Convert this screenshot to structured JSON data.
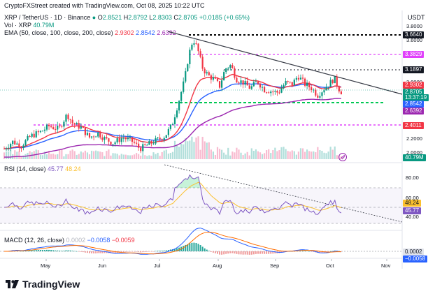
{
  "header": {
    "credit": "CryptoFXStreet created with TradingView.com, Oct 08, 2025 10:22 UTC",
    "symbol": "XRP / TetherUS · 1D · Binance",
    "o_label": "O",
    "o": "2.8521",
    "h_label": "H",
    "h": "2.8792",
    "l_label": "L",
    "l": "2.8303",
    "c_label": "C",
    "c": "2.8705",
    "change": "+0.0185 (+0.65%)",
    "vol_label": "Vol · XRP",
    "vol": "40.79M",
    "ema_label": "EMA (50, close, 100, close, 200, close)",
    "ema50": "2.9302",
    "ema100": "2.8542",
    "ema200": "2.6392",
    "currency": "USDT"
  },
  "colors": {
    "up": "#089981",
    "down": "#f23645",
    "ema50": "#f23645",
    "ema100": "#2962ff",
    "ema200": "#9c27b0",
    "rsi": "#7e57c2",
    "rsi_ma": "#fbc02d",
    "green_level": "#00c853",
    "magenta_level": "#e040fb",
    "trend": "#363a45"
  },
  "price_axis": {
    "ticks": [
      "3.8000",
      "3.6000",
      "3.4000",
      "3.2000",
      "3.0000",
      "2.8000",
      "2.6000",
      "2.4000",
      "2.2000",
      "2.0000"
    ],
    "tags": [
      {
        "value": "3.6640",
        "bg": "#131722"
      },
      {
        "value": "3.3829",
        "bg": "#e040fb"
      },
      {
        "value": "3.1897",
        "bg": "#131722"
      },
      {
        "value": "2.9302",
        "bg": "#f23645"
      },
      {
        "value": "2.8705",
        "bg": "#089981"
      },
      {
        "value": "13:37:19",
        "bg": "#089981"
      },
      {
        "value": "2.8542",
        "bg": "#2962ff"
      },
      {
        "value": "2.6392",
        "bg": "#9c27b0"
      },
      {
        "value": "2.4011",
        "bg": "#f23645"
      },
      {
        "value": "40.79M",
        "bg": "#089981"
      }
    ]
  },
  "rsi": {
    "label": "RSI (14, close)",
    "value": "45.77",
    "ma": "48.24",
    "ticks": [
      "80.00",
      "60.00",
      "40.00"
    ]
  },
  "macd": {
    "label": "MACD (12, 26, close)",
    "v1": "0.0002",
    "v2": "−0.0058",
    "v3": "−0.0059",
    "tag1": "0.0002",
    "tag2": "−0.0058"
  },
  "time_axis": [
    "May",
    "Jun",
    "Jul",
    "Aug",
    "Sep",
    "Oct",
    "Nov"
  ],
  "chart_data": {
    "type": "candlestick",
    "price_series_daily_close_approx": [
      2.1,
      2.14,
      2.18,
      2.12,
      2.2,
      2.25,
      2.22,
      2.3,
      2.28,
      2.36,
      2.4,
      2.38,
      2.42,
      2.52,
      2.48,
      2.44,
      2.4,
      2.36,
      2.3,
      2.28,
      2.32,
      2.26,
      2.2,
      2.18,
      2.15,
      2.12,
      2.18,
      2.1,
      2.08,
      2.05,
      2.1,
      2.16,
      2.18,
      2.22,
      2.26,
      2.28,
      2.32,
      2.3,
      2.42,
      2.55,
      2.72,
      2.9,
      3.05,
      3.2,
      3.52,
      3.6,
      3.48,
      3.3,
      3.15,
      3.2,
      3.12,
      3.05,
      3.28,
      3.15,
      3.08,
      3.0,
      3.1,
      3.05,
      2.98,
      2.92,
      2.88,
      2.95,
      3.0,
      2.92,
      2.88,
      2.95,
      3.08,
      2.96,
      3.0,
      2.98,
      2.88,
      2.82,
      2.9,
      2.86,
      2.87
    ],
    "levels": {
      "resistance_top": 3.664,
      "level_magenta_upper": 3.3829,
      "level_dashed": 3.1897,
      "support_green": 2.83,
      "support_magenta_lower": 2.4011
    },
    "ema": {
      "ema50": 2.9302,
      "ema100": 2.8542,
      "ema200": 2.6392
    },
    "rsi_last": 45.77,
    "rsi_ma_last": 48.24,
    "macd_last": 0.0002,
    "signal_last": -0.0058,
    "hist_last": -0.0059
  }
}
